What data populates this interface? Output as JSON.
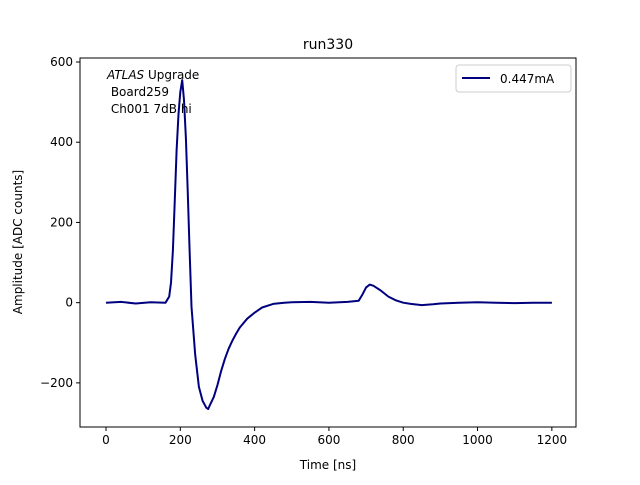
{
  "chart_data": {
    "type": "line",
    "title": "run330",
    "xlabel": "Time [ns]",
    "ylabel": "Amplitude [ADC counts]",
    "xlim": [
      -70,
      1265
    ],
    "ylim": [
      -310,
      610
    ],
    "xticks": [
      0,
      200,
      400,
      600,
      800,
      1000,
      1200
    ],
    "xtick_labels": [
      "0",
      "200",
      "400",
      "600",
      "800",
      "1000",
      "1200"
    ],
    "yticks": [
      -200,
      0,
      200,
      400,
      600
    ],
    "ytick_labels": [
      "−200",
      "0",
      "200",
      "400",
      "600"
    ],
    "grid": false,
    "legend_position": "top-right",
    "annotation": {
      "italic": "ATLAS",
      "rest": " Upgrade",
      "line2": " Board259",
      "line3": " Ch001 7dB hi"
    },
    "series": [
      {
        "name": "0.447mA",
        "color": "#00007f",
        "x": [
          0,
          40,
          80,
          120,
          160,
          170,
          175,
          180,
          185,
          190,
          195,
          200,
          205,
          210,
          215,
          220,
          225,
          230,
          240,
          250,
          260,
          270,
          275,
          280,
          290,
          300,
          310,
          320,
          330,
          340,
          350,
          360,
          380,
          400,
          420,
          450,
          480,
          500,
          550,
          600,
          650,
          680,
          690,
          700,
          710,
          720,
          740,
          760,
          780,
          800,
          820,
          850,
          880,
          900,
          950,
          1000,
          1050,
          1100,
          1150,
          1200
        ],
        "y": [
          0,
          2,
          -2,
          1,
          0,
          15,
          50,
          130,
          250,
          380,
          470,
          525,
          555,
          505,
          410,
          280,
          130,
          -10,
          -130,
          -210,
          -245,
          -262,
          -265,
          -255,
          -235,
          -205,
          -170,
          -140,
          -115,
          -95,
          -78,
          -62,
          -40,
          -25,
          -12,
          -3,
          0,
          1,
          2,
          0,
          2,
          5,
          20,
          38,
          45,
          42,
          30,
          15,
          6,
          0,
          -3,
          -6,
          -4,
          -2,
          0,
          1,
          0,
          -1,
          0,
          0
        ]
      }
    ]
  }
}
